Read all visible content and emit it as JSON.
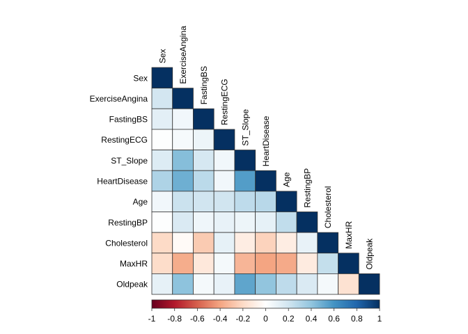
{
  "chart_data": {
    "type": "heatmap",
    "layout": "lower-triangular correlation matrix",
    "variables": [
      "Sex",
      "ExerciseAngina",
      "FastingBS",
      "RestingECG",
      "ST_Slope",
      "HeartDisease",
      "Age",
      "RestingBP",
      "Cholesterol",
      "MaxHR",
      "Oldpeak"
    ],
    "correlations": [
      [
        1
      ],
      [
        0.19,
        1
      ],
      [
        0.12,
        0.06,
        1
      ],
      [
        0.01,
        0.04,
        0.08,
        1
      ],
      [
        0.15,
        0.43,
        0.18,
        0.06,
        1
      ],
      [
        0.31,
        0.49,
        0.27,
        0.06,
        0.56,
        1
      ],
      [
        0.06,
        0.22,
        0.2,
        0.2,
        0.26,
        0.28,
        1
      ],
      [
        0.01,
        0.16,
        0.07,
        0.1,
        0.08,
        0.11,
        0.25,
        1
      ],
      [
        -0.2,
        -0.03,
        -0.26,
        0.11,
        -0.1,
        -0.23,
        -0.1,
        0.1,
        1
      ],
      [
        -0.19,
        -0.37,
        -0.13,
        0.05,
        -0.34,
        -0.4,
        -0.38,
        -0.11,
        0.24,
        1
      ],
      [
        0.11,
        0.41,
        0.05,
        0.1,
        0.53,
        0.4,
        0.26,
        0.16,
        0.05,
        -0.16,
        1
      ]
    ],
    "color_scale": {
      "min": -1,
      "max": 1,
      "ticks": [
        "-1",
        "-0.8",
        "-0.6",
        "-0.4",
        "-0.2",
        "0",
        "0.2",
        "0.4",
        "0.6",
        "0.8",
        "1"
      ],
      "colors": [
        "#67001F",
        "#B2182B",
        "#D6604D",
        "#F4A582",
        "#FDDBC7",
        "#FFFFFF",
        "#D1E5F0",
        "#92C5DE",
        "#4393C3",
        "#2166AC",
        "#053061"
      ]
    },
    "legend": "bottom"
  }
}
